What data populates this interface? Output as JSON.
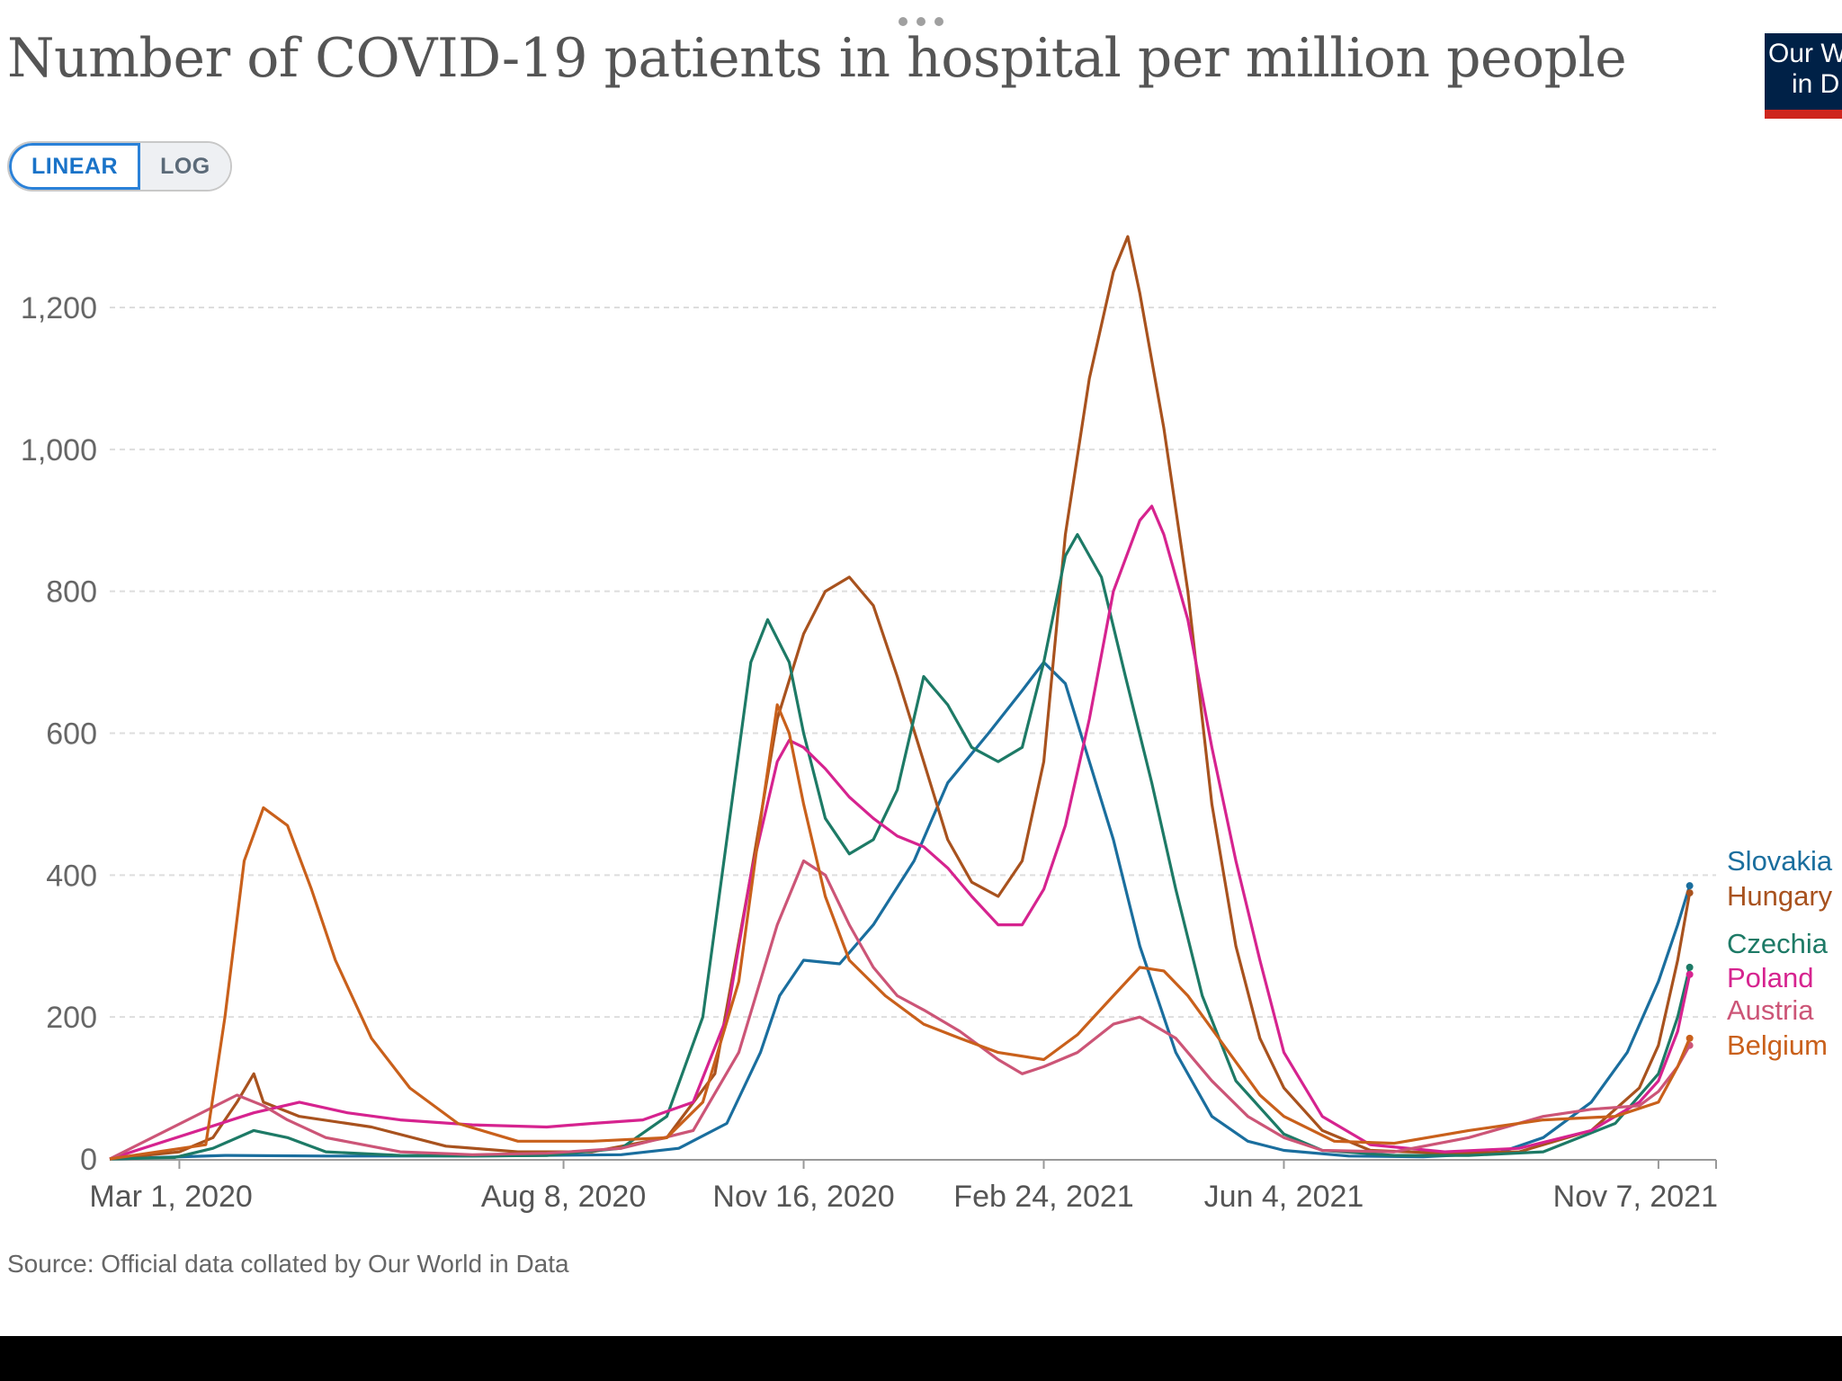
{
  "title": "Number of COVID-19 patients in hospital per million people",
  "logo": {
    "line1": "Our W",
    "line2": "in D"
  },
  "toggle": {
    "linear_label": "LINEAR",
    "log_label": "LOG",
    "selected": "LINEAR"
  },
  "source": "Source: Official data collated by Our World in Data",
  "colors": {
    "Slovakia": "#1a6e9e",
    "Hungary": "#a8521e",
    "Czechia": "#1d7a66",
    "Poland": "#d6238f",
    "Austria": "#cc5577",
    "Belgium": "#c9601b"
  },
  "chart_data": {
    "type": "line",
    "title": "Number of COVID-19 patients in hospital per million people",
    "xlabel": "",
    "ylabel": "",
    "scale": "linear",
    "ylim": [
      0,
      1300
    ],
    "yticks": [
      0,
      200,
      400,
      600,
      800,
      1000,
      1200
    ],
    "ytick_labels": [
      "0",
      "200",
      "400",
      "600",
      "800",
      "1,000",
      "1,200"
    ],
    "xlim": [
      "2020-02-01",
      "2021-12-01"
    ],
    "xticks": [
      "2020-03-01",
      "2020-08-08",
      "2020-11-16",
      "2021-02-24",
      "2021-06-04",
      "2021-11-07"
    ],
    "xtick_labels": [
      "Mar 1, 2020",
      "Aug 8, 2020",
      "Nov 16, 2020",
      "Feb 24, 2021",
      "Jun 4, 2021",
      "Nov 7, 2021"
    ],
    "grid": "horizontal dashed",
    "legend": "right end labels",
    "series": [
      {
        "name": "Slovakia",
        "points": [
          [
            "2020-03-20",
            5
          ],
          [
            "2020-05-01",
            4
          ],
          [
            "2020-07-01",
            4
          ],
          [
            "2020-09-01",
            6
          ],
          [
            "2020-09-25",
            15
          ],
          [
            "2020-10-15",
            50
          ],
          [
            "2020-10-29",
            150
          ],
          [
            "2020-11-06",
            230
          ],
          [
            "2020-11-16",
            280
          ],
          [
            "2020-12-01",
            275
          ],
          [
            "2020-12-15",
            330
          ],
          [
            "2021-01-01",
            420
          ],
          [
            "2021-01-15",
            530
          ],
          [
            "2021-02-01",
            600
          ],
          [
            "2021-02-15",
            660
          ],
          [
            "2021-02-24",
            700
          ],
          [
            "2021-03-05",
            670
          ],
          [
            "2021-03-15",
            560
          ],
          [
            "2021-03-25",
            450
          ],
          [
            "2021-04-05",
            300
          ],
          [
            "2021-04-20",
            150
          ],
          [
            "2021-05-05",
            60
          ],
          [
            "2021-05-20",
            25
          ],
          [
            "2021-06-04",
            12
          ],
          [
            "2021-07-01",
            4
          ],
          [
            "2021-08-01",
            3
          ],
          [
            "2021-09-01",
            8
          ],
          [
            "2021-09-20",
            30
          ],
          [
            "2021-10-10",
            80
          ],
          [
            "2021-10-25",
            150
          ],
          [
            "2021-11-07",
            250
          ],
          [
            "2021-11-15",
            330
          ],
          [
            "2021-11-20",
            385
          ]
        ]
      },
      {
        "name": "Hungary",
        "points": [
          [
            "2020-03-01",
            10
          ],
          [
            "2020-03-15",
            30
          ],
          [
            "2020-03-25",
            80
          ],
          [
            "2020-04-01",
            120
          ],
          [
            "2020-04-05",
            80
          ],
          [
            "2020-04-20",
            60
          ],
          [
            "2020-05-20",
            45
          ],
          [
            "2020-06-20",
            18
          ],
          [
            "2020-07-20",
            10
          ],
          [
            "2020-08-20",
            10
          ],
          [
            "2020-09-20",
            30
          ],
          [
            "2020-10-10",
            120
          ],
          [
            "2020-10-25",
            400
          ],
          [
            "2020-11-05",
            620
          ],
          [
            "2020-11-16",
            740
          ],
          [
            "2020-11-25",
            800
          ],
          [
            "2020-12-05",
            820
          ],
          [
            "2020-12-15",
            780
          ],
          [
            "2020-12-25",
            680
          ],
          [
            "2021-01-05",
            560
          ],
          [
            "2021-01-15",
            450
          ],
          [
            "2021-01-25",
            390
          ],
          [
            "2021-02-05",
            370
          ],
          [
            "2021-02-15",
            420
          ],
          [
            "2021-02-24",
            560
          ],
          [
            "2021-03-05",
            880
          ],
          [
            "2021-03-15",
            1100
          ],
          [
            "2021-03-25",
            1250
          ],
          [
            "2021-03-31",
            1300
          ],
          [
            "2021-04-05",
            1220
          ],
          [
            "2021-04-15",
            1030
          ],
          [
            "2021-04-25",
            800
          ],
          [
            "2021-05-05",
            500
          ],
          [
            "2021-05-15",
            300
          ],
          [
            "2021-05-25",
            170
          ],
          [
            "2021-06-04",
            100
          ],
          [
            "2021-06-20",
            40
          ],
          [
            "2021-07-10",
            12
          ],
          [
            "2021-08-10",
            8
          ],
          [
            "2021-09-10",
            10
          ],
          [
            "2021-10-10",
            40
          ],
          [
            "2021-10-30",
            100
          ],
          [
            "2021-11-07",
            160
          ],
          [
            "2021-11-15",
            280
          ],
          [
            "2021-11-20",
            375
          ]
        ]
      },
      {
        "name": "Czechia",
        "points": [
          [
            "2020-02-28",
            2
          ],
          [
            "2020-03-15",
            15
          ],
          [
            "2020-04-01",
            40
          ],
          [
            "2020-04-15",
            30
          ],
          [
            "2020-05-01",
            10
          ],
          [
            "2020-06-01",
            5
          ],
          [
            "2020-07-01",
            4
          ],
          [
            "2020-08-01",
            5
          ],
          [
            "2020-09-01",
            15
          ],
          [
            "2020-09-20",
            60
          ],
          [
            "2020-10-05",
            200
          ],
          [
            "2020-10-15",
            450
          ],
          [
            "2020-10-25",
            700
          ],
          [
            "2020-11-01",
            760
          ],
          [
            "2020-11-10",
            700
          ],
          [
            "2020-11-16",
            600
          ],
          [
            "2020-11-25",
            480
          ],
          [
            "2020-12-05",
            430
          ],
          [
            "2020-12-15",
            450
          ],
          [
            "2020-12-25",
            520
          ],
          [
            "2021-01-05",
            680
          ],
          [
            "2021-01-15",
            640
          ],
          [
            "2021-01-25",
            580
          ],
          [
            "2021-02-05",
            560
          ],
          [
            "2021-02-15",
            580
          ],
          [
            "2021-02-24",
            700
          ],
          [
            "2021-03-05",
            850
          ],
          [
            "2021-03-10",
            880
          ],
          [
            "2021-03-20",
            820
          ],
          [
            "2021-03-30",
            680
          ],
          [
            "2021-04-10",
            530
          ],
          [
            "2021-04-20",
            380
          ],
          [
            "2021-05-01",
            230
          ],
          [
            "2021-05-15",
            110
          ],
          [
            "2021-06-04",
            35
          ],
          [
            "2021-06-20",
            12
          ],
          [
            "2021-07-20",
            5
          ],
          [
            "2021-08-20",
            5
          ],
          [
            "2021-09-20",
            10
          ],
          [
            "2021-10-20",
            50
          ],
          [
            "2021-11-07",
            120
          ],
          [
            "2021-11-15",
            200
          ],
          [
            "2021-11-20",
            270
          ]
        ]
      },
      {
        "name": "Poland",
        "points": [
          [
            "2020-04-01",
            65
          ],
          [
            "2020-04-20",
            80
          ],
          [
            "2020-05-10",
            65
          ],
          [
            "2020-06-01",
            55
          ],
          [
            "2020-07-01",
            48
          ],
          [
            "2020-08-01",
            45
          ],
          [
            "2020-08-20",
            50
          ],
          [
            "2020-09-10",
            55
          ],
          [
            "2020-10-01",
            80
          ],
          [
            "2020-10-15",
            200
          ],
          [
            "2020-10-25",
            400
          ],
          [
            "2020-11-05",
            560
          ],
          [
            "2020-11-10",
            590
          ],
          [
            "2020-11-16",
            580
          ],
          [
            "2020-11-25",
            550
          ],
          [
            "2020-12-05",
            510
          ],
          [
            "2020-12-15",
            480
          ],
          [
            "2020-12-25",
            455
          ],
          [
            "2021-01-05",
            440
          ],
          [
            "2021-01-15",
            410
          ],
          [
            "2021-01-25",
            370
          ],
          [
            "2021-02-05",
            330
          ],
          [
            "2021-02-15",
            330
          ],
          [
            "2021-02-24",
            380
          ],
          [
            "2021-03-05",
            470
          ],
          [
            "2021-03-15",
            620
          ],
          [
            "2021-03-25",
            800
          ],
          [
            "2021-04-05",
            900
          ],
          [
            "2021-04-10",
            920
          ],
          [
            "2021-04-15",
            880
          ],
          [
            "2021-04-25",
            760
          ],
          [
            "2021-05-05",
            580
          ],
          [
            "2021-05-15",
            420
          ],
          [
            "2021-05-25",
            280
          ],
          [
            "2021-06-04",
            150
          ],
          [
            "2021-06-20",
            60
          ],
          [
            "2021-07-10",
            20
          ],
          [
            "2021-08-10",
            10
          ],
          [
            "2021-09-10",
            15
          ],
          [
            "2021-10-10",
            40
          ],
          [
            "2021-10-30",
            80
          ],
          [
            "2021-11-07",
            110
          ],
          [
            "2021-11-15",
            180
          ],
          [
            "2021-11-20",
            260
          ]
        ]
      },
      {
        "name": "Austria",
        "points": [
          [
            "2020-03-25",
            90
          ],
          [
            "2020-04-05",
            75
          ],
          [
            "2020-04-15",
            55
          ],
          [
            "2020-05-01",
            30
          ],
          [
            "2020-06-01",
            10
          ],
          [
            "2020-07-01",
            6
          ],
          [
            "2020-08-01",
            8
          ],
          [
            "2020-09-01",
            15
          ],
          [
            "2020-10-01",
            40
          ],
          [
            "2020-10-20",
            150
          ],
          [
            "2020-11-05",
            330
          ],
          [
            "2020-11-16",
            420
          ],
          [
            "2020-11-25",
            400
          ],
          [
            "2020-12-05",
            330
          ],
          [
            "2020-12-15",
            270
          ],
          [
            "2020-12-25",
            230
          ],
          [
            "2021-01-05",
            210
          ],
          [
            "2021-01-20",
            180
          ],
          [
            "2021-02-05",
            140
          ],
          [
            "2021-02-15",
            120
          ],
          [
            "2021-02-24",
            130
          ],
          [
            "2021-03-10",
            150
          ],
          [
            "2021-03-25",
            190
          ],
          [
            "2021-04-05",
            200
          ],
          [
            "2021-04-20",
            170
          ],
          [
            "2021-05-05",
            110
          ],
          [
            "2021-05-20",
            60
          ],
          [
            "2021-06-04",
            30
          ],
          [
            "2021-06-20",
            12
          ],
          [
            "2021-07-20",
            10
          ],
          [
            "2021-08-20",
            30
          ],
          [
            "2021-09-20",
            60
          ],
          [
            "2021-10-10",
            70
          ],
          [
            "2021-10-30",
            75
          ],
          [
            "2021-11-07",
            95
          ],
          [
            "2021-11-15",
            130
          ],
          [
            "2021-11-20",
            160
          ]
        ]
      },
      {
        "name": "Belgium",
        "points": [
          [
            "2020-03-12",
            20
          ],
          [
            "2020-03-20",
            200
          ],
          [
            "2020-03-28",
            420
          ],
          [
            "2020-04-05",
            495
          ],
          [
            "2020-04-15",
            470
          ],
          [
            "2020-04-25",
            380
          ],
          [
            "2020-05-05",
            280
          ],
          [
            "2020-05-20",
            170
          ],
          [
            "2020-06-05",
            100
          ],
          [
            "2020-06-25",
            50
          ],
          [
            "2020-07-20",
            25
          ],
          [
            "2020-08-20",
            25
          ],
          [
            "2020-09-20",
            30
          ],
          [
            "2020-10-05",
            80
          ],
          [
            "2020-10-20",
            250
          ],
          [
            "2020-10-30",
            500
          ],
          [
            "2020-11-05",
            640
          ],
          [
            "2020-11-10",
            600
          ],
          [
            "2020-11-16",
            500
          ],
          [
            "2020-11-25",
            370
          ],
          [
            "2020-12-05",
            280
          ],
          [
            "2020-12-20",
            230
          ],
          [
            "2021-01-05",
            190
          ],
          [
            "2021-01-20",
            170
          ],
          [
            "2021-02-05",
            150
          ],
          [
            "2021-02-24",
            140
          ],
          [
            "2021-03-10",
            175
          ],
          [
            "2021-03-25",
            230
          ],
          [
            "2021-04-05",
            270
          ],
          [
            "2021-04-15",
            265
          ],
          [
            "2021-04-25",
            230
          ],
          [
            "2021-05-10",
            160
          ],
          [
            "2021-05-25",
            90
          ],
          [
            "2021-06-04",
            60
          ],
          [
            "2021-06-25",
            25
          ],
          [
            "2021-07-20",
            22
          ],
          [
            "2021-08-20",
            40
          ],
          [
            "2021-09-20",
            55
          ],
          [
            "2021-10-20",
            60
          ],
          [
            "2021-11-07",
            80
          ],
          [
            "2021-11-15",
            130
          ],
          [
            "2021-11-20",
            170
          ]
        ]
      }
    ]
  }
}
